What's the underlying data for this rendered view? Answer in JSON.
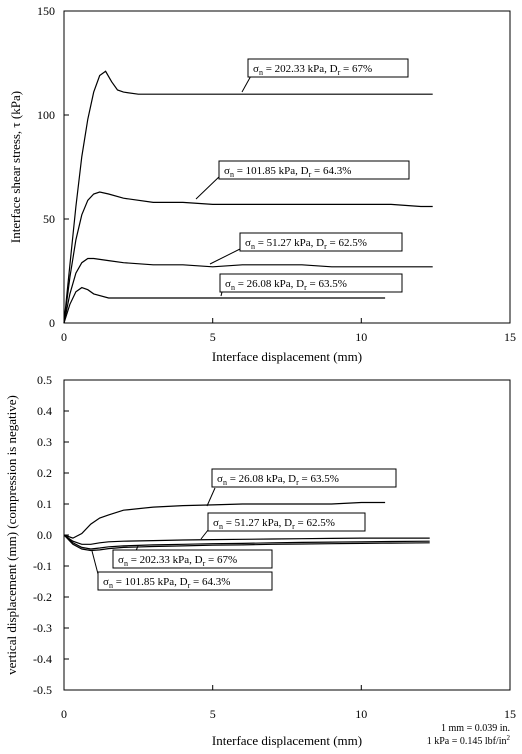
{
  "chart_data": [
    {
      "type": "line",
      "xlabel": "Interface displacement (mm)",
      "ylabel": "Interface shear stress, τ (kPa)",
      "xlim": [
        0,
        15
      ],
      "ylim": [
        0,
        150
      ],
      "xticks": [
        "0",
        "5",
        "10",
        "15"
      ],
      "yticks": [
        "0",
        "50",
        "100",
        "150"
      ],
      "grid": false,
      "series": [
        {
          "sigma": "202.33",
          "dr": "67%",
          "x": [
            0,
            0.2,
            0.4,
            0.6,
            0.8,
            1.0,
            1.2,
            1.4,
            1.6,
            1.8,
            2.0,
            2.5,
            3,
            4,
            5,
            6,
            7,
            8,
            9,
            10,
            11,
            12,
            12.4
          ],
          "y": [
            0,
            28,
            56,
            80,
            98,
            111,
            119,
            121,
            116,
            112,
            111,
            110,
            110,
            110,
            110,
            110,
            110,
            110,
            110,
            110,
            110,
            110,
            110
          ]
        },
        {
          "sigma": "101.85",
          "dr": "64.3%",
          "x": [
            0,
            0.2,
            0.4,
            0.6,
            0.8,
            1.0,
            1.2,
            1.5,
            2,
            3,
            4,
            5,
            6,
            7,
            8,
            9,
            10,
            11,
            12,
            12.4
          ],
          "y": [
            0,
            22,
            40,
            52,
            59,
            62,
            63,
            62,
            60,
            58,
            58,
            57,
            57,
            57,
            57,
            57,
            57,
            57,
            56,
            56
          ]
        },
        {
          "sigma": "51.27",
          "dr": "62.5%",
          "x": [
            0,
            0.2,
            0.4,
            0.6,
            0.8,
            1.0,
            1.5,
            2,
            3,
            4,
            5,
            6,
            7,
            8,
            9,
            10,
            11,
            12,
            12.4
          ],
          "y": [
            0,
            14,
            24,
            29,
            31,
            31,
            30,
            29,
            28,
            28,
            27,
            28,
            28,
            28,
            27,
            27,
            27,
            27,
            27
          ]
        },
        {
          "sigma": "26.08",
          "dr": "63.5%",
          "x": [
            0,
            0.2,
            0.4,
            0.6,
            0.8,
            1.0,
            1.5,
            2,
            3,
            4,
            5,
            6,
            7,
            8,
            9,
            10,
            10.8
          ],
          "y": [
            0,
            9,
            15,
            17,
            16,
            14,
            12,
            12,
            12,
            12,
            12,
            12,
            12,
            12,
            12,
            12,
            12
          ]
        }
      ],
      "annotations": [
        {
          "sigma": "202.33",
          "dr": "67%",
          "pointer": [
            12.0,
            111
          ]
        },
        {
          "sigma": "101.85",
          "dr": "64.3%",
          "pointer": [
            2.0,
            60
          ]
        },
        {
          "sigma": "51.27",
          "dr": "62.5%",
          "pointer": [
            4.9,
            28
          ]
        },
        {
          "sigma": "26.08",
          "dr": "63.5%",
          "pointer": [
            5.3,
            13
          ]
        }
      ]
    },
    {
      "type": "line",
      "xlabel": "Interface displacement (mm)",
      "ylabel": "vertical displacement (mm) (compression is negative)",
      "xlim": [
        0,
        15
      ],
      "ylim": [
        -0.5,
        0.5
      ],
      "xticks": [
        "0",
        "5",
        "10",
        "15"
      ],
      "yticks": [
        "0.5",
        "0.4",
        "0.3",
        "0.2",
        "0.1",
        "0.0",
        "-0.1",
        "-0.2",
        "-0.3",
        "-0.4",
        "-0.5"
      ],
      "grid": false,
      "series": [
        {
          "sigma": "26.08",
          "dr": "63.5%",
          "x": [
            0,
            0.3,
            0.6,
            0.9,
            1.2,
            1.5,
            2,
            3,
            4,
            5,
            6,
            7,
            8,
            9,
            10,
            10.8
          ],
          "y": [
            0,
            -0.01,
            0.005,
            0.035,
            0.055,
            0.065,
            0.08,
            0.09,
            0.095,
            0.097,
            0.1,
            0.1,
            0.1,
            0.1,
            0.105,
            0.105
          ]
        },
        {
          "sigma": "51.27",
          "dr": "62.5%",
          "x": [
            0,
            0.3,
            0.6,
            0.9,
            1.2,
            1.5,
            2,
            3,
            4,
            5,
            6,
            7,
            8,
            9,
            10,
            11,
            12.3
          ],
          "y": [
            0,
            -0.02,
            -0.03,
            -0.03,
            -0.025,
            -0.022,
            -0.02,
            -0.018,
            -0.016,
            -0.015,
            -0.014,
            -0.013,
            -0.012,
            -0.011,
            -0.01,
            -0.01,
            -0.01
          ]
        },
        {
          "sigma": "202.33",
          "dr": "67%",
          "x": [
            0,
            0.3,
            0.6,
            0.9,
            1.2,
            1.5,
            2,
            3,
            4,
            5,
            6,
            7,
            8,
            9,
            10,
            11,
            12.3
          ],
          "y": [
            0,
            -0.025,
            -0.04,
            -0.045,
            -0.042,
            -0.038,
            -0.035,
            -0.032,
            -0.03,
            -0.028,
            -0.027,
            -0.025,
            -0.024,
            -0.023,
            -0.022,
            -0.021,
            -0.02
          ]
        },
        {
          "sigma": "101.85",
          "dr": "64.3%",
          "x": [
            0,
            0.3,
            0.6,
            0.9,
            1.2,
            1.5,
            2,
            3,
            4,
            5,
            6,
            7,
            8,
            9,
            10,
            11,
            12.3
          ],
          "y": [
            0,
            -0.03,
            -0.045,
            -0.05,
            -0.048,
            -0.044,
            -0.04,
            -0.037,
            -0.035,
            -0.033,
            -0.032,
            -0.03,
            -0.029,
            -0.028,
            -0.027,
            -0.026,
            -0.025
          ]
        }
      ],
      "annotations": [
        {
          "sigma": "26.08",
          "dr": "63.5%",
          "pointer": [
            4.8,
            0.1
          ]
        },
        {
          "sigma": "51.27",
          "dr": "62.5%",
          "pointer": [
            4.6,
            -0.015
          ]
        },
        {
          "sigma": "202.33",
          "dr": "67%",
          "pointer": [
            2.5,
            -0.034
          ]
        },
        {
          "sigma": "101.85",
          "dr": "64.3%",
          "pointer": [
            1.0,
            -0.05
          ]
        }
      ],
      "notes": [
        "1 mm = 0.039 in.",
        "1 kPa = 0.145 lbf/in",
        "2"
      ]
    }
  ]
}
